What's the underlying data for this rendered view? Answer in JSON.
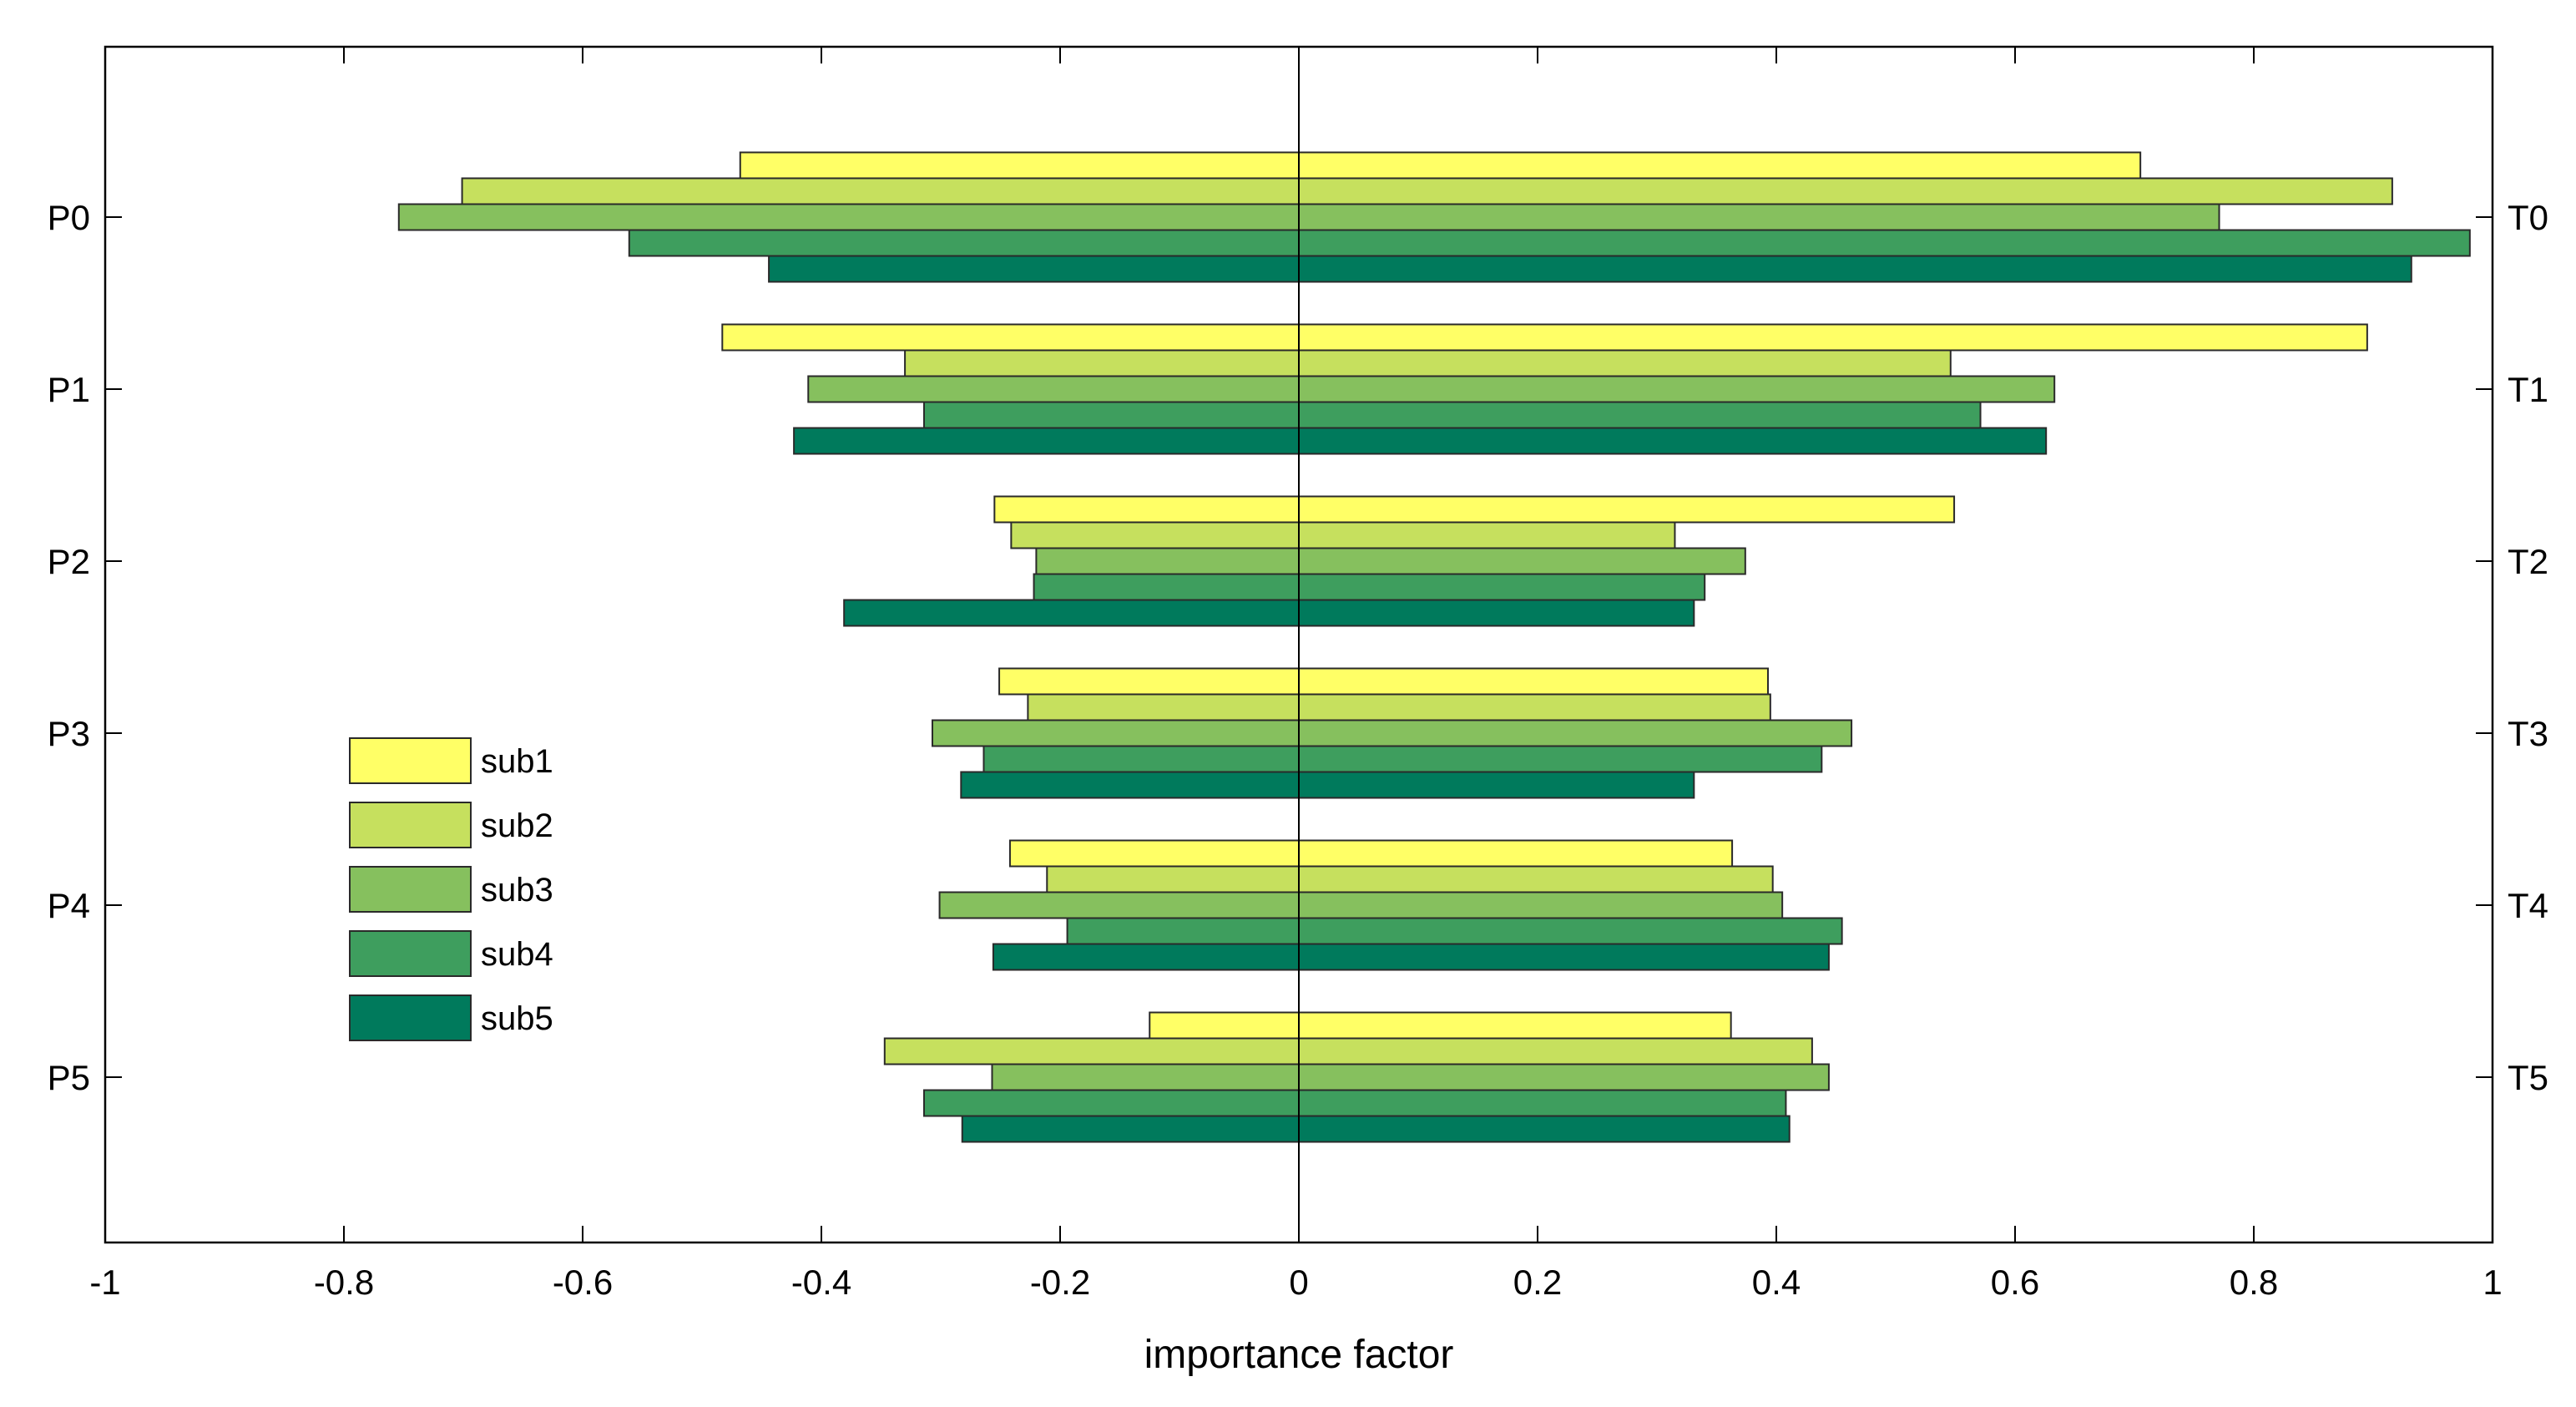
{
  "chart_data": {
    "type": "bar",
    "orientation": "horizontal-diverging",
    "title": "",
    "xlabel": "importance factor",
    "xlim": [
      -1,
      1
    ],
    "xticks": [
      -1,
      -0.8,
      -0.6,
      -0.4,
      -0.2,
      0,
      0.2,
      0.4,
      0.6,
      0.8,
      1
    ],
    "xtick_labels": [
      "-1",
      "-0.8",
      "-0.6",
      "-0.4",
      "-0.2",
      "0",
      "0.2",
      "0.4",
      "0.6",
      "0.8",
      "1"
    ],
    "left_categories": [
      "P0",
      "P1",
      "P2",
      "P3",
      "P4",
      "P5"
    ],
    "right_categories": [
      "T0",
      "T1",
      "T2",
      "T3",
      "T4",
      "T5"
    ],
    "legend_position": "left-center",
    "series": [
      {
        "name": "sub1",
        "color": "#FFFF66",
        "left": [
          -0.468,
          -0.483,
          -0.255,
          -0.251,
          -0.242,
          -0.125
        ],
        "right": [
          0.705,
          0.895,
          0.549,
          0.393,
          0.363,
          0.362
        ]
      },
      {
        "name": "sub2",
        "color": "#C6E05E",
        "left": [
          -0.701,
          -0.33,
          -0.241,
          -0.227,
          -0.211,
          -0.347
        ],
        "right": [
          0.916,
          0.546,
          0.315,
          0.395,
          0.397,
          0.43
        ]
      },
      {
        "name": "sub3",
        "color": "#86C05E",
        "left": [
          -0.754,
          -0.411,
          -0.22,
          -0.307,
          -0.301,
          -0.257
        ],
        "right": [
          0.771,
          0.633,
          0.374,
          0.463,
          0.405,
          0.444
        ]
      },
      {
        "name": "sub4",
        "color": "#3E9E5E",
        "left": [
          -0.561,
          -0.314,
          -0.222,
          -0.264,
          -0.194,
          -0.314
        ],
        "right": [
          0.981,
          0.571,
          0.34,
          0.438,
          0.455,
          0.408
        ]
      },
      {
        "name": "sub5",
        "color": "#007A5C",
        "left": [
          -0.444,
          -0.423,
          -0.381,
          -0.283,
          -0.256,
          -0.282
        ],
        "right": [
          0.932,
          0.626,
          0.331,
          0.331,
          0.444,
          0.411
        ]
      }
    ]
  }
}
